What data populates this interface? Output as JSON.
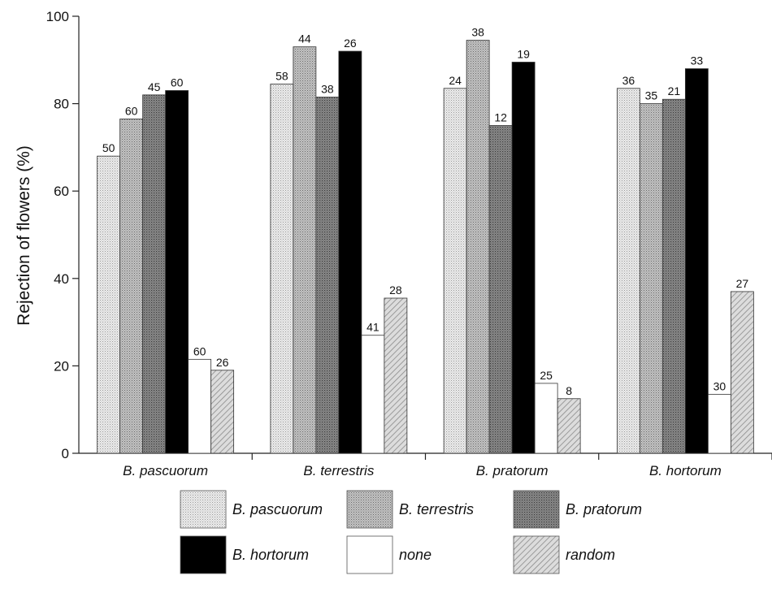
{
  "chart_data": {
    "type": "bar",
    "title": "",
    "xlabel": "",
    "ylabel": "Rejection of flowers (%)",
    "ylim": [
      0,
      100
    ],
    "yticks": [
      0,
      20,
      40,
      60,
      80,
      100
    ],
    "grid": false,
    "legend_placement": "bottom",
    "categories": [
      "B. pascuorum",
      "B. terrestris",
      "B. pratorum",
      "B. hortorum"
    ],
    "series": [
      {
        "name": "B. pascuorum",
        "values": [
          68,
          84.5,
          83.5,
          83.5
        ],
        "labels": [
          "50",
          "58",
          "24",
          "36"
        ],
        "color": "#e2e2e2",
        "pattern": "dots-light"
      },
      {
        "name": "B. terrestris",
        "values": [
          76.5,
          93,
          94.5,
          80
        ],
        "labels": [
          "60",
          "44",
          "38",
          "35"
        ],
        "color": "#b4b4b4",
        "pattern": "dots-mid"
      },
      {
        "name": "B. pratorum",
        "values": [
          82,
          81.5,
          75,
          81
        ],
        "labels": [
          "45",
          "38",
          "12",
          "21"
        ],
        "color": "#8a8a8a",
        "pattern": "dots-dark"
      },
      {
        "name": "B. hortorum",
        "values": [
          83,
          92,
          89.5,
          88
        ],
        "labels": [
          "60",
          "26",
          "19",
          "33"
        ],
        "color": "#000000",
        "pattern": "solid"
      },
      {
        "name": "none",
        "values": [
          21.5,
          27,
          16,
          13.5
        ],
        "labels": [
          "60",
          "41",
          "25",
          "30"
        ],
        "color": "#ffffff",
        "pattern": "solid"
      },
      {
        "name": "random",
        "values": [
          19,
          35.5,
          12.5,
          37
        ],
        "labels": [
          "26",
          "28",
          "8",
          "27"
        ],
        "color": "#c8c8c8",
        "pattern": "hatch"
      }
    ]
  }
}
